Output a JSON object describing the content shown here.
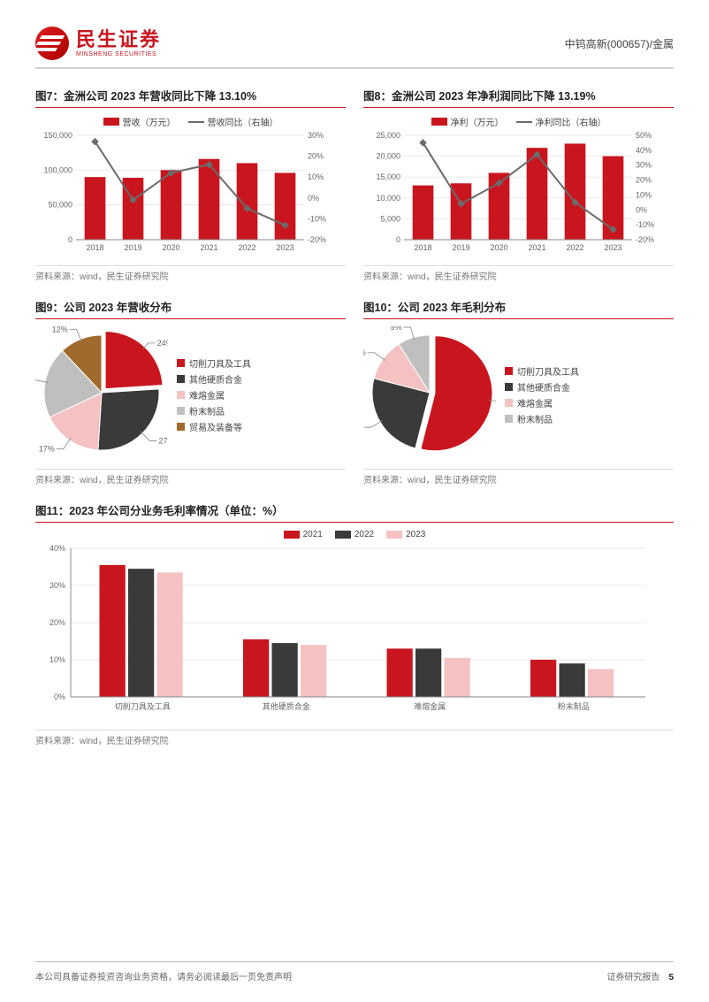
{
  "header": {
    "logo_cn": "民生证券",
    "logo_en": "MINSHENG SECURITIES",
    "right": "中钨高新(000657)/金属"
  },
  "fig7": {
    "title": "图7：金洲公司 2023 年营收同比下降 13.10%",
    "type": "bar-line-dual-axis",
    "categories": [
      "2018",
      "2019",
      "2020",
      "2021",
      "2022",
      "2023"
    ],
    "bar_label": "营收（万元）",
    "bar_values": [
      90000,
      89000,
      100000,
      116000,
      110000,
      96000
    ],
    "bar_color": "#c9151e",
    "line_label": "营收同比（右轴）",
    "line_values": [
      27,
      -1,
      12,
      16,
      -5,
      -13.1
    ],
    "line_color": "#6b6b6b",
    "yleft": {
      "min": 0,
      "max": 150000,
      "ticks": [
        0,
        50000,
        100000,
        150000
      ]
    },
    "yright": {
      "min": -20,
      "max": 30,
      "ticks": [
        -20,
        -10,
        0,
        10,
        20,
        30
      ],
      "suffix": "%"
    },
    "source": "资料来源：wind，民生证券研究院"
  },
  "fig8": {
    "title": "图8：金洲公司 2023 年净利润同比下降 13.19%",
    "type": "bar-line-dual-axis",
    "categories": [
      "2018",
      "2019",
      "2020",
      "2021",
      "2022",
      "2023"
    ],
    "bar_label": "净利（万元）",
    "bar_values": [
      13000,
      13500,
      16000,
      22000,
      23000,
      20000
    ],
    "bar_color": "#c9151e",
    "line_label": "净利同比（右轴）",
    "line_values": [
      45,
      4,
      18,
      37,
      5,
      -13.19
    ],
    "line_color": "#6b6b6b",
    "yleft": {
      "min": 0,
      "max": 25000,
      "ticks": [
        0,
        5000,
        10000,
        15000,
        20000,
        25000
      ]
    },
    "yright": {
      "min": -20,
      "max": 50,
      "ticks": [
        -20,
        -10,
        0,
        10,
        20,
        30,
        40,
        50
      ],
      "suffix": "%"
    },
    "source": "资料来源：wind，民生证券研究院"
  },
  "fig9": {
    "title": "图9：公司 2023 年营收分布",
    "type": "pie",
    "slices": [
      {
        "label": "切削刀具及工具",
        "value": 24,
        "color": "#c9151e"
      },
      {
        "label": "其他硬质合金",
        "value": 27,
        "color": "#3a3a3a"
      },
      {
        "label": "难熔金属",
        "value": 17,
        "color": "#f4c2c2"
      },
      {
        "label": "粉末制品",
        "value": 20,
        "color": "#bfbfbf"
      },
      {
        "label": "贸易及装备等",
        "value": 12,
        "color": "#a06a2c"
      }
    ],
    "source": "资料来源：wind，民生证券研究院"
  },
  "fig10": {
    "title": "图10：公司 2023 年毛利分布",
    "type": "pie",
    "slices": [
      {
        "label": "切削刀具及工具",
        "value": 54,
        "color": "#c9151e"
      },
      {
        "label": "其他硬质合金",
        "value": 25,
        "color": "#3a3a3a"
      },
      {
        "label": "难熔金属",
        "value": 12,
        "color": "#f4c2c2"
      },
      {
        "label": "粉末制品",
        "value": 9,
        "color": "#bfbfbf"
      }
    ],
    "source": "资料来源：wind，民生证券研究院"
  },
  "fig11": {
    "title": "图11：2023 年公司分业务毛利率情况（单位：%）",
    "type": "grouped-bar",
    "categories": [
      "切削刀具及工具",
      "其他硬质合金",
      "难熔金属",
      "粉末制品"
    ],
    "series": [
      {
        "name": "2021",
        "color": "#c9151e",
        "values": [
          35.5,
          15.5,
          13,
          10
        ]
      },
      {
        "name": "2022",
        "color": "#3a3a3a",
        "values": [
          34.5,
          14.5,
          13,
          9
        ]
      },
      {
        "name": "2023",
        "color": "#f4c2c2",
        "values": [
          33.5,
          14,
          10.5,
          7.5
        ]
      }
    ],
    "y": {
      "min": 0,
      "max": 40,
      "ticks": [
        0,
        10,
        20,
        30,
        40
      ],
      "suffix": "%"
    },
    "source": "资料来源：wind，民生证券研究院"
  },
  "footer": {
    "left": "本公司具备证券投资咨询业务资格，请务必阅读最后一页免责声明",
    "right": "证券研究报告",
    "page": "5"
  }
}
